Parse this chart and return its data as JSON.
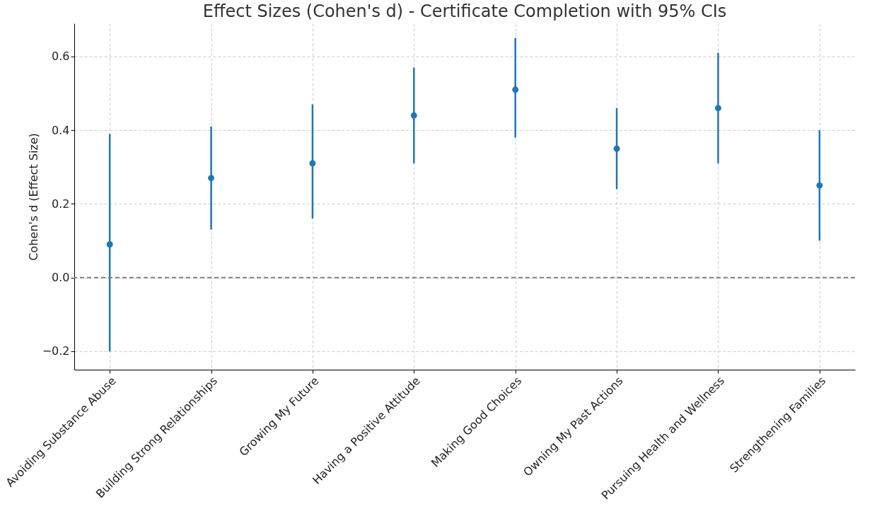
{
  "chart_data": {
    "type": "scatter",
    "title": "Effect Sizes (Cohen's d) - Certificate Completion with 95% CIs",
    "ylabel": "Cohen's d (Effect Size)",
    "categories": [
      "Avoiding Substance Abuse",
      "Building Strong Relationships",
      "Growing My Future",
      "Having a Positive Attitude",
      "Making Good Choices",
      "Owning My Past Actions",
      "Pursuing Health and Wellness",
      "Strengthening Families"
    ],
    "series": [
      {
        "color": "#1f77b4",
        "values": [
          0.09,
          0.27,
          0.31,
          0.44,
          0.51,
          0.35,
          0.46,
          0.25
        ],
        "errors": [
          [
            -0.2,
            0.39
          ],
          [
            0.13,
            0.41
          ],
          [
            0.16,
            0.47
          ],
          [
            0.31,
            0.57
          ],
          [
            0.38,
            0.65
          ],
          [
            0.24,
            0.46
          ],
          [
            0.31,
            0.61
          ],
          [
            0.1,
            0.4
          ]
        ]
      }
    ],
    "ylim": [
      -0.25,
      0.69
    ],
    "yticks": [
      {
        "value": -0.2,
        "label": "−0.2"
      },
      {
        "value": 0,
        "label": "0.0"
      },
      0.2,
      0.4,
      0.6
    ],
    "ref_lines": [
      {
        "axis": "y",
        "value": 0,
        "color": "#808080",
        "line_style": "dashed"
      }
    ],
    "grid": true,
    "marker": "circle"
  }
}
